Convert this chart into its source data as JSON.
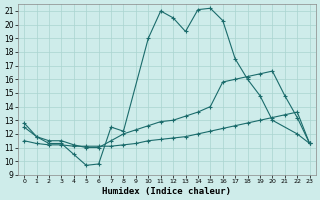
{
  "xlabel": "Humidex (Indice chaleur)",
  "background_color": "#ceecea",
  "grid_color": "#aad4d0",
  "line_color": "#1a6b6b",
  "xlim": [
    -0.5,
    23.5
  ],
  "ylim": [
    9,
    21.5
  ],
  "yticks": [
    9,
    10,
    11,
    12,
    13,
    14,
    15,
    16,
    17,
    18,
    19,
    20,
    21
  ],
  "xticks": [
    0,
    1,
    2,
    3,
    4,
    5,
    6,
    7,
    8,
    9,
    10,
    11,
    12,
    13,
    14,
    15,
    16,
    17,
    18,
    19,
    20,
    21,
    22,
    23
  ],
  "line1_x": [
    0,
    1,
    2,
    3,
    4,
    5,
    6,
    7,
    8,
    10,
    11,
    12,
    13,
    14,
    15,
    16,
    17,
    18,
    19,
    20,
    22,
    23
  ],
  "line1_y": [
    12.8,
    11.8,
    11.3,
    11.3,
    10.5,
    9.7,
    9.8,
    12.5,
    12.2,
    19.0,
    21.0,
    20.5,
    19.5,
    21.1,
    21.2,
    20.3,
    17.5,
    16.0,
    14.8,
    13.0,
    12.0,
    11.3
  ],
  "line2_x": [
    0,
    1,
    2,
    3,
    4,
    5,
    6,
    7,
    8,
    9,
    10,
    11,
    12,
    13,
    14,
    15,
    16,
    17,
    18,
    19,
    20,
    21,
    22,
    23
  ],
  "line2_y": [
    11.5,
    11.3,
    11.2,
    11.2,
    11.1,
    11.1,
    11.1,
    11.1,
    11.2,
    11.3,
    11.5,
    11.6,
    11.7,
    11.8,
    12.0,
    12.2,
    12.4,
    12.6,
    12.8,
    13.0,
    13.2,
    13.4,
    13.6,
    11.3
  ],
  "line3_x": [
    0,
    1,
    2,
    3,
    4,
    5,
    6,
    7,
    8,
    9,
    10,
    11,
    12,
    13,
    14,
    15,
    16,
    17,
    18,
    19,
    20,
    21,
    22,
    23
  ],
  "line3_y": [
    12.5,
    11.8,
    11.5,
    11.5,
    11.2,
    11.0,
    11.0,
    11.5,
    12.0,
    12.3,
    12.6,
    12.9,
    13.0,
    13.3,
    13.6,
    14.0,
    15.8,
    16.0,
    16.2,
    16.4,
    16.6,
    14.8,
    13.2,
    11.3
  ]
}
